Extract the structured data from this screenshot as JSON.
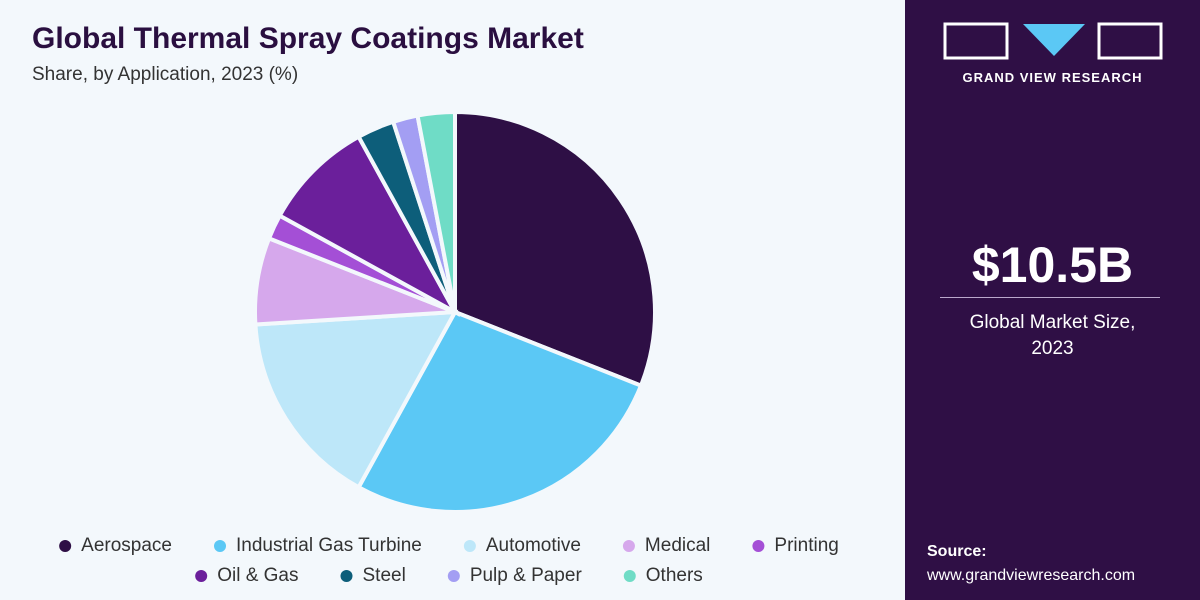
{
  "chart_data": {
    "type": "pie",
    "title": "Global Thermal Spray Coatings Market",
    "subtitle": "Share, by Application, 2023 (%)",
    "categories": [
      "Aerospace",
      "Industrial Gas Turbine",
      "Automotive",
      "Medical",
      "Printing",
      "Oil & Gas",
      "Steel",
      "Pulp & Paper",
      "Others"
    ],
    "values": [
      31,
      27,
      16,
      7,
      2,
      9,
      3,
      2,
      3
    ],
    "colors": [
      "#2e0f45",
      "#5bc8f5",
      "#bde7f9",
      "#d6a8ec",
      "#a44fd6",
      "#6b1f9b",
      "#0d5e7a",
      "#a39ef3",
      "#6fdcc6"
    ]
  },
  "sidebar": {
    "brand": "GRAND VIEW RESEARCH",
    "market_size": "$10.5B",
    "market_size_label": "Global Market Size, 2023",
    "source_label": "Source:",
    "source_url": "www.grandviewresearch.com"
  }
}
